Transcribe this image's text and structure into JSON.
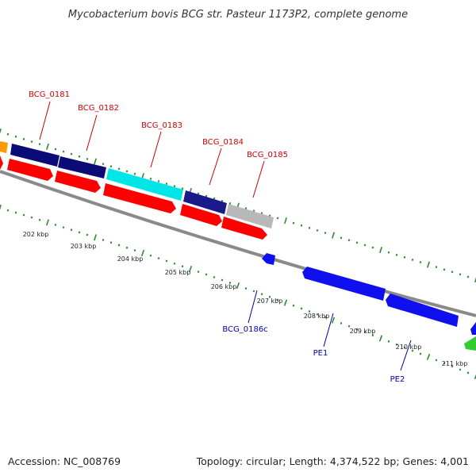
{
  "title": "Mycobacterium bovis BCG str. Pasteur 1173P2, complete genome",
  "footer": {
    "accession": "Accession: NC_008769",
    "summary": "Topology: circular; Length: 4,374,522 bp; Genes: 4,001"
  },
  "colors": {
    "background": "#ffffff",
    "backbone": "#8a8a8a",
    "tick": "#2e8b2e",
    "forward_label": "#cc0000",
    "reverse_label": "#0000aa",
    "cds": "#ff0000",
    "gene_dark": "#0b0b78",
    "gene_cyan": "#00e5e5",
    "gene_blue": "#1010ee",
    "gene_orange": "#ff9900",
    "gene_green": "#33cc33",
    "gene_gray": "#b8b8b8"
  },
  "scale_labels": [
    "202 kbp",
    "203 kbp",
    "204 kbp",
    "205 kbp",
    "206 kbp",
    "207 kbp",
    "208 kbp",
    "209 kbp",
    "210 kbp",
    "211 kbp"
  ],
  "forward_genes": [
    {
      "label": "BCG_0181"
    },
    {
      "label": "BCG_0182"
    },
    {
      "label": "BCG_0183"
    },
    {
      "label": "BCG_0184"
    },
    {
      "label": "BCG_0185"
    }
  ],
  "reverse_genes": [
    {
      "label": "BCG_0186c"
    },
    {
      "label": "PE1"
    },
    {
      "label": "PE2"
    }
  ]
}
